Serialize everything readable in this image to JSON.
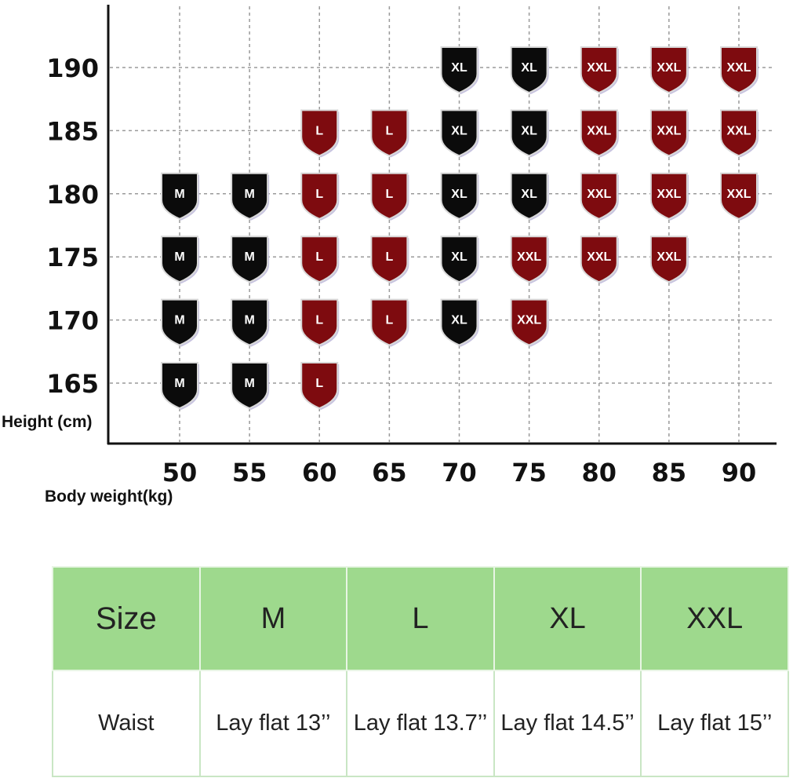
{
  "chart_data": {
    "type": "scatter",
    "xlabel": "Body weight(kg)",
    "ylabel": "Height (cm)",
    "x_ticks": [
      50,
      55,
      60,
      65,
      70,
      75,
      80,
      85,
      90
    ],
    "y_ticks": [
      190,
      185,
      180,
      175,
      170,
      165
    ],
    "grid": true,
    "category_colors": {
      "M": "#0b0b0b",
      "L": "#7e0b0f",
      "XL": "#0b0b0b",
      "XXL": "#7e0b0f"
    },
    "points": [
      {
        "x": 70,
        "y": 190,
        "size": "XL"
      },
      {
        "x": 75,
        "y": 190,
        "size": "XL"
      },
      {
        "x": 80,
        "y": 190,
        "size": "XXL"
      },
      {
        "x": 85,
        "y": 190,
        "size": "XXL"
      },
      {
        "x": 90,
        "y": 190,
        "size": "XXL"
      },
      {
        "x": 60,
        "y": 185,
        "size": "L"
      },
      {
        "x": 65,
        "y": 185,
        "size": "L"
      },
      {
        "x": 70,
        "y": 185,
        "size": "XL"
      },
      {
        "x": 75,
        "y": 185,
        "size": "XL"
      },
      {
        "x": 80,
        "y": 185,
        "size": "XXL"
      },
      {
        "x": 85,
        "y": 185,
        "size": "XXL"
      },
      {
        "x": 90,
        "y": 185,
        "size": "XXL"
      },
      {
        "x": 50,
        "y": 180,
        "size": "M"
      },
      {
        "x": 55,
        "y": 180,
        "size": "M"
      },
      {
        "x": 60,
        "y": 180,
        "size": "L"
      },
      {
        "x": 65,
        "y": 180,
        "size": "L"
      },
      {
        "x": 70,
        "y": 180,
        "size": "XL"
      },
      {
        "x": 75,
        "y": 180,
        "size": "XL"
      },
      {
        "x": 80,
        "y": 180,
        "size": "XXL"
      },
      {
        "x": 85,
        "y": 180,
        "size": "XXL"
      },
      {
        "x": 90,
        "y": 180,
        "size": "XXL"
      },
      {
        "x": 50,
        "y": 175,
        "size": "M"
      },
      {
        "x": 55,
        "y": 175,
        "size": "M"
      },
      {
        "x": 60,
        "y": 175,
        "size": "L"
      },
      {
        "x": 65,
        "y": 175,
        "size": "L"
      },
      {
        "x": 70,
        "y": 175,
        "size": "XL"
      },
      {
        "x": 75,
        "y": 175,
        "size": "XXL"
      },
      {
        "x": 80,
        "y": 175,
        "size": "XXL"
      },
      {
        "x": 85,
        "y": 175,
        "size": "XXL"
      },
      {
        "x": 50,
        "y": 170,
        "size": "M"
      },
      {
        "x": 55,
        "y": 170,
        "size": "M"
      },
      {
        "x": 60,
        "y": 170,
        "size": "L"
      },
      {
        "x": 65,
        "y": 170,
        "size": "L"
      },
      {
        "x": 70,
        "y": 170,
        "size": "XL"
      },
      {
        "x": 75,
        "y": 170,
        "size": "XXL"
      },
      {
        "x": 50,
        "y": 165,
        "size": "M"
      },
      {
        "x": 55,
        "y": 165,
        "size": "M"
      },
      {
        "x": 60,
        "y": 165,
        "size": "L"
      }
    ]
  },
  "size_table": {
    "header": [
      "Size",
      "M",
      "L",
      "XL",
      "XXL"
    ],
    "row": [
      "Waist",
      "Lay flat 13’’",
      "Lay flat 13.7’’",
      "Lay flat 14.5’’",
      "Lay flat 15’’"
    ],
    "header_color": "#9ed98d"
  }
}
